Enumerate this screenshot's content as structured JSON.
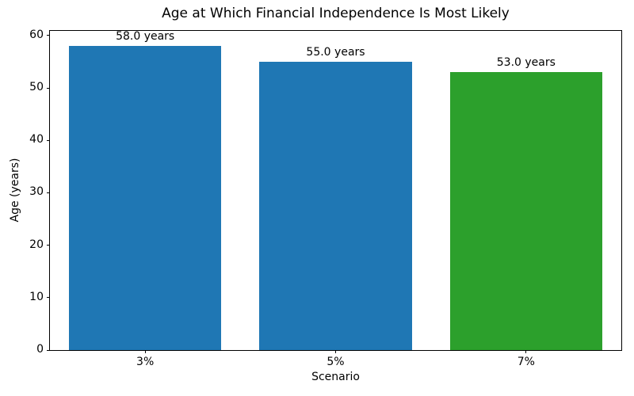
{
  "chart_data": {
    "type": "bar",
    "title": "Age at Which Financial Independence Is Most Likely",
    "xlabel": "Scenario",
    "ylabel": "Age (years)",
    "categories": [
      "3%",
      "5%",
      "7%"
    ],
    "values": [
      58.0,
      55.0,
      53.0
    ],
    "bar_labels": [
      "58.0 years",
      "55.0 years",
      "53.0 years"
    ],
    "bar_colors": [
      "#1f77b4",
      "#1f77b4",
      "#2ca02c"
    ],
    "ylim": [
      0,
      60.9
    ],
    "yticks": [
      0,
      10,
      20,
      30,
      40,
      50,
      60
    ],
    "bar_width_fraction": 0.8,
    "grid": false,
    "legend": null,
    "spine_color": "#000000",
    "background_color": "#ffffff"
  }
}
